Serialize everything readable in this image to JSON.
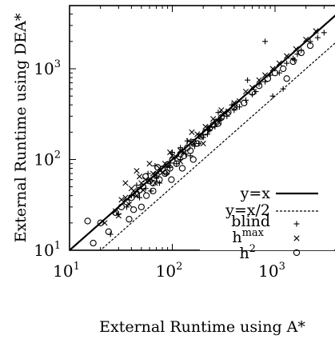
{
  "chart_data": {
    "type": "scatter",
    "title": "",
    "xlabel": "External Runtime using A*",
    "ylabel": "External Runtime using DEA*",
    "xscale": "log",
    "yscale": "log",
    "xlim": [
      10,
      4200
    ],
    "ylim": [
      10,
      4200
    ],
    "grid": false,
    "legend_position": "bottom-right",
    "x_ticks": [
      {
        "value": 10,
        "base": "10",
        "exp": "1"
      },
      {
        "value": 100,
        "base": "10",
        "exp": "2"
      },
      {
        "value": 1000,
        "base": "10",
        "exp": "3"
      }
    ],
    "y_ticks": [
      {
        "value": 10,
        "base": "10",
        "exp": "1"
      },
      {
        "value": 100,
        "base": "10",
        "exp": "2"
      },
      {
        "value": 1000,
        "base": "10",
        "exp": "3"
      }
    ],
    "reference_lines": [
      {
        "name": "y=x",
        "slope": 1,
        "style": "solid"
      },
      {
        "name": "y=x/2",
        "slope": 0.5,
        "style": "dashed"
      }
    ],
    "series": [
      {
        "name": "blind",
        "name_base": "blind",
        "name_sup": "",
        "marker": "plus",
        "points": [
          [
            25,
            15
          ],
          [
            40,
            40
          ],
          [
            48,
            38
          ],
          [
            55,
            48
          ],
          [
            62,
            45
          ],
          [
            70,
            62
          ],
          [
            75,
            55
          ],
          [
            88,
            70
          ],
          [
            95,
            82
          ],
          [
            110,
            90
          ],
          [
            120,
            100
          ],
          [
            135,
            115
          ],
          [
            150,
            110
          ],
          [
            165,
            140
          ],
          [
            180,
            150
          ],
          [
            200,
            175
          ],
          [
            220,
            190
          ],
          [
            260,
            230
          ],
          [
            300,
            280
          ],
          [
            340,
            300
          ],
          [
            400,
            350
          ],
          [
            450,
            380
          ],
          [
            520,
            450
          ],
          [
            600,
            520
          ],
          [
            700,
            680
          ],
          [
            800,
            720
          ],
          [
            950,
            500
          ],
          [
            1100,
            900
          ],
          [
            1300,
            1150
          ],
          [
            1500,
            1300
          ],
          [
            1800,
            1600
          ],
          [
            2200,
            2000
          ],
          [
            3000,
            2500
          ],
          [
            1550,
            1250
          ],
          [
            800,
            2000
          ],
          [
            1200,
            600
          ],
          [
            540,
            750
          ],
          [
            280,
            330
          ],
          [
            120,
            135
          ],
          [
            30,
            25
          ],
          [
            36,
            30
          ],
          [
            58,
            70
          ],
          [
            68,
            85
          ],
          [
            140,
            160
          ],
          [
            230,
            210
          ],
          [
            380,
            400
          ],
          [
            650,
            560
          ],
          [
            900,
            850
          ],
          [
            1650,
            1450
          ],
          [
            2600,
            2200
          ],
          [
            100,
            120
          ],
          [
            45,
            52
          ]
        ]
      },
      {
        "name": "h^max",
        "name_base": "h",
        "name_sup": "max",
        "marker": "x",
        "points": [
          [
            22,
            20
          ],
          [
            28,
            27
          ],
          [
            30,
            24
          ],
          [
            35,
            38
          ],
          [
            38,
            32
          ],
          [
            42,
            45
          ],
          [
            45,
            40
          ],
          [
            50,
            55
          ],
          [
            52,
            46
          ],
          [
            55,
            60
          ],
          [
            60,
            58
          ],
          [
            65,
            70
          ],
          [
            70,
            68
          ],
          [
            75,
            80
          ],
          [
            80,
            72
          ],
          [
            85,
            90
          ],
          [
            90,
            85
          ],
          [
            100,
            110
          ],
          [
            110,
            105
          ],
          [
            120,
            125
          ],
          [
            130,
            120
          ],
          [
            145,
            160
          ],
          [
            160,
            150
          ],
          [
            175,
            190
          ],
          [
            190,
            180
          ],
          [
            210,
            230
          ],
          [
            230,
            220
          ],
          [
            250,
            280
          ],
          [
            280,
            260
          ],
          [
            310,
            320
          ],
          [
            350,
            340
          ],
          [
            400,
            420
          ],
          [
            450,
            440
          ],
          [
            520,
            560
          ],
          [
            600,
            620
          ],
          [
            700,
            750
          ],
          [
            800,
            850
          ],
          [
            950,
            1000
          ],
          [
            1100,
            1150
          ],
          [
            1300,
            1380
          ],
          [
            1600,
            1650
          ],
          [
            2000,
            2100
          ],
          [
            2500,
            2600
          ],
          [
            60,
            90
          ],
          [
            35,
            55
          ],
          [
            45,
            75
          ],
          [
            200,
            150
          ],
          [
            120,
            95
          ],
          [
            68,
            55
          ],
          [
            40,
            48
          ],
          [
            155,
            200
          ],
          [
            95,
            120
          ],
          [
            48,
            65
          ],
          [
            300,
            350
          ],
          [
            410,
            380
          ],
          [
            32,
            36
          ]
        ]
      },
      {
        "name": "h^2",
        "name_base": "h",
        "name_sup": "2",
        "marker": "circle",
        "points": [
          [
            15,
            21
          ],
          [
            17,
            12
          ],
          [
            20,
            20
          ],
          [
            24,
            16
          ],
          [
            28,
            26
          ],
          [
            32,
            30
          ],
          [
            36,
            34
          ],
          [
            40,
            38
          ],
          [
            42,
            28
          ],
          [
            45,
            42
          ],
          [
            48,
            46
          ],
          [
            52,
            50
          ],
          [
            56,
            40
          ],
          [
            60,
            58
          ],
          [
            65,
            55
          ],
          [
            70,
            68
          ],
          [
            75,
            60
          ],
          [
            80,
            78
          ],
          [
            85,
            70
          ],
          [
            90,
            88
          ],
          [
            95,
            80
          ],
          [
            100,
            98
          ],
          [
            110,
            90
          ],
          [
            120,
            115
          ],
          [
            130,
            110
          ],
          [
            140,
            135
          ],
          [
            150,
            125
          ],
          [
            160,
            155
          ],
          [
            175,
            150
          ],
          [
            190,
            180
          ],
          [
            210,
            200
          ],
          [
            230,
            220
          ],
          [
            250,
            240
          ],
          [
            280,
            250
          ],
          [
            300,
            290
          ],
          [
            350,
            330
          ],
          [
            400,
            380
          ],
          [
            500,
            420
          ],
          [
            600,
            550
          ],
          [
            700,
            650
          ],
          [
            850,
            780
          ],
          [
            1000,
            900
          ],
          [
            1200,
            1000
          ],
          [
            1500,
            1200
          ],
          [
            1800,
            1500
          ],
          [
            2200,
            1800
          ],
          [
            1300,
            780
          ],
          [
            55,
            65
          ],
          [
            72,
            82
          ],
          [
            98,
            60
          ],
          [
            125,
            80
          ],
          [
            160,
            100
          ],
          [
            38,
            22
          ],
          [
            50,
            30
          ],
          [
            65,
            45
          ],
          [
            88,
            72
          ],
          [
            270,
            260
          ]
        ]
      }
    ]
  }
}
